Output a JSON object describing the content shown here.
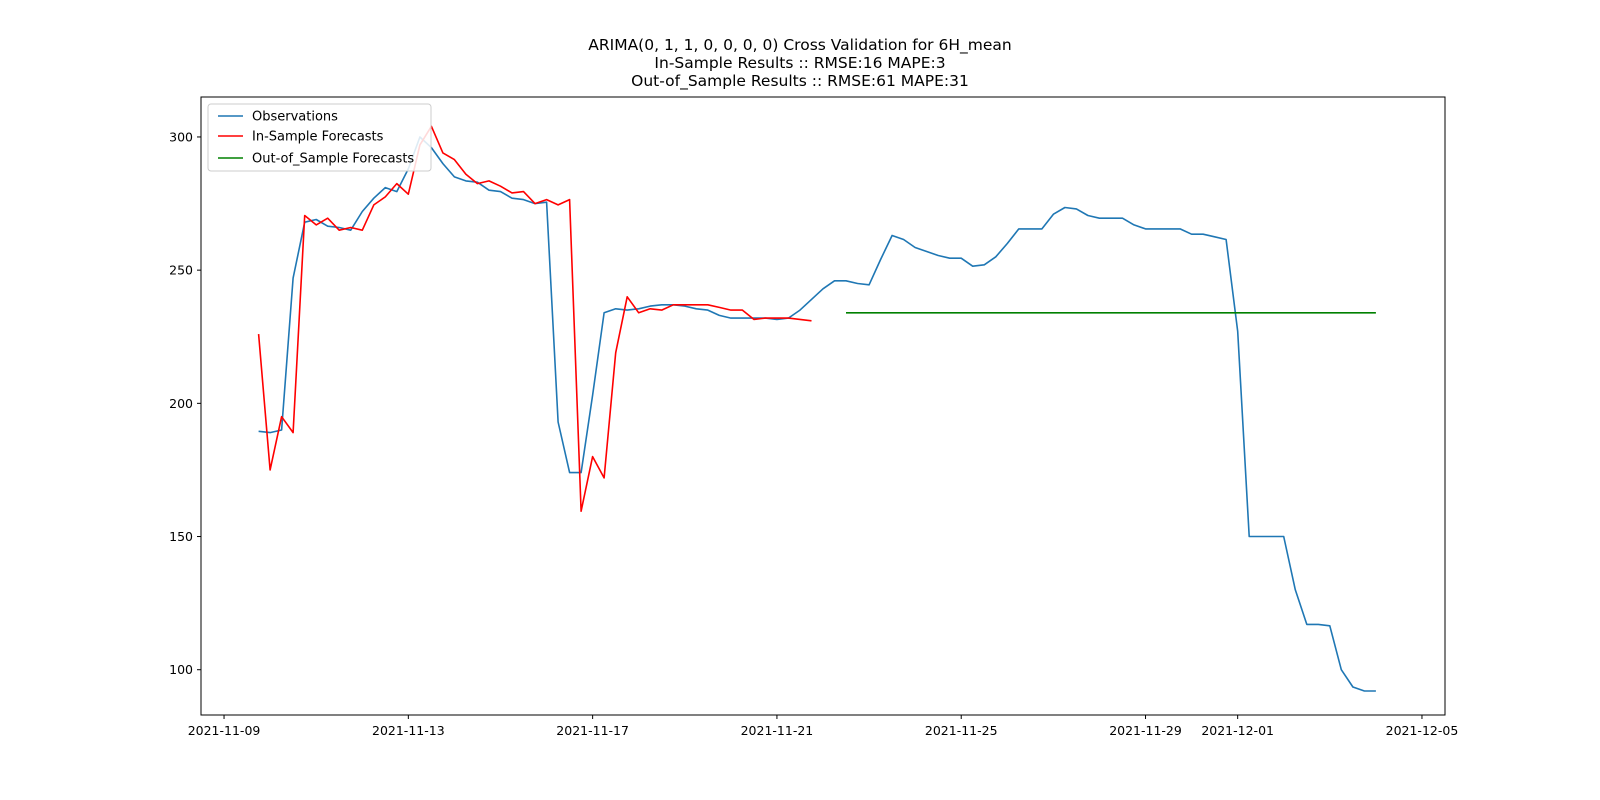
{
  "chart_data": {
    "type": "line",
    "title_lines": [
      "ARIMA(0, 1, 1, 0, 0, 0, 0) Cross Validation for 6H_mean",
      "In-Sample Results :: RMSE:16 MAPE:3",
      "Out-of_Sample Results :: RMSE:61 MAPE:31"
    ],
    "xlabel": "",
    "ylabel": "",
    "x_range": [
      "2021-11-08T12:00",
      "2021-12-05T12:00"
    ],
    "ylim": [
      83,
      315
    ],
    "x_ticks": [
      "2021-11-09",
      "2021-11-13",
      "2021-11-17",
      "2021-11-21",
      "2021-11-25",
      "2021-11-29",
      "2021-12-01",
      "2021-12-05"
    ],
    "y_ticks": [
      100,
      150,
      200,
      250,
      300
    ],
    "grid": false,
    "legend_placement": "upper-left",
    "series": [
      {
        "name": "Observations",
        "color": "#1f77b4",
        "points": [
          [
            "2021-11-09T18:00",
            189.5
          ],
          [
            "2021-11-10T00:00",
            189
          ],
          [
            "2021-11-10T06:00",
            190
          ],
          [
            "2021-11-10T12:00",
            247
          ],
          [
            "2021-11-10T18:00",
            268
          ],
          [
            "2021-11-11T00:00",
            269
          ],
          [
            "2021-11-11T06:00",
            266.5
          ],
          [
            "2021-11-11T12:00",
            266
          ],
          [
            "2021-11-11T18:00",
            265
          ],
          [
            "2021-11-12T00:00",
            272
          ],
          [
            "2021-11-12T06:00",
            277
          ],
          [
            "2021-11-12T12:00",
            281
          ],
          [
            "2021-11-12T18:00",
            279.5
          ],
          [
            "2021-11-13T00:00",
            288
          ],
          [
            "2021-11-13T06:00",
            300
          ],
          [
            "2021-11-13T12:00",
            296
          ],
          [
            "2021-11-13T18:00",
            290
          ],
          [
            "2021-11-14T00:00",
            285
          ],
          [
            "2021-11-14T06:00",
            283.5
          ],
          [
            "2021-11-14T12:00",
            283
          ],
          [
            "2021-11-14T18:00",
            280
          ],
          [
            "2021-11-15T00:00",
            279.5
          ],
          [
            "2021-11-15T06:00",
            277
          ],
          [
            "2021-11-15T12:00",
            276.5
          ],
          [
            "2021-11-15T18:00",
            275
          ],
          [
            "2021-11-16T00:00",
            275.5
          ],
          [
            "2021-11-16T06:00",
            193
          ],
          [
            "2021-11-16T12:00",
            174
          ],
          [
            "2021-11-16T18:00",
            174
          ],
          [
            "2021-11-17T00:00",
            203
          ],
          [
            "2021-11-17T06:00",
            234
          ],
          [
            "2021-11-17T12:00",
            235.5
          ],
          [
            "2021-11-17T18:00",
            235
          ],
          [
            "2021-11-18T00:00",
            235.5
          ],
          [
            "2021-11-18T06:00",
            236.5
          ],
          [
            "2021-11-18T12:00",
            237
          ],
          [
            "2021-11-18T18:00",
            237
          ],
          [
            "2021-11-19T00:00",
            236.5
          ],
          [
            "2021-11-19T06:00",
            235.5
          ],
          [
            "2021-11-19T12:00",
            235
          ],
          [
            "2021-11-19T18:00",
            233
          ],
          [
            "2021-11-20T00:00",
            232
          ],
          [
            "2021-11-20T06:00",
            232
          ],
          [
            "2021-11-20T12:00",
            232
          ],
          [
            "2021-11-20T18:00",
            232
          ],
          [
            "2021-11-21T00:00",
            231.5
          ],
          [
            "2021-11-21T06:00",
            232
          ],
          [
            "2021-11-21T12:00",
            235
          ],
          [
            "2021-11-21T18:00",
            239
          ],
          [
            "2021-11-22T00:00",
            243
          ],
          [
            "2021-11-22T06:00",
            246
          ],
          [
            "2021-11-22T12:00",
            246
          ],
          [
            "2021-11-22T18:00",
            245
          ],
          [
            "2021-11-23T00:00",
            244.5
          ],
          [
            "2021-11-23T06:00",
            254
          ],
          [
            "2021-11-23T12:00",
            263
          ],
          [
            "2021-11-23T18:00",
            261.5
          ],
          [
            "2021-11-24T00:00",
            258.5
          ],
          [
            "2021-11-24T06:00",
            257
          ],
          [
            "2021-11-24T12:00",
            255.5
          ],
          [
            "2021-11-24T18:00",
            254.5
          ],
          [
            "2021-11-25T00:00",
            254.5
          ],
          [
            "2021-11-25T06:00",
            251.5
          ],
          [
            "2021-11-25T12:00",
            252
          ],
          [
            "2021-11-25T18:00",
            255
          ],
          [
            "2021-11-26T00:00",
            260
          ],
          [
            "2021-11-26T06:00",
            265.5
          ],
          [
            "2021-11-26T12:00",
            265.5
          ],
          [
            "2021-11-26T18:00",
            265.5
          ],
          [
            "2021-11-27T00:00",
            271
          ],
          [
            "2021-11-27T06:00",
            273.5
          ],
          [
            "2021-11-27T12:00",
            273
          ],
          [
            "2021-11-27T18:00",
            270.5
          ],
          [
            "2021-11-28T00:00",
            269.5
          ],
          [
            "2021-11-28T06:00",
            269.5
          ],
          [
            "2021-11-28T12:00",
            269.5
          ],
          [
            "2021-11-28T18:00",
            267
          ],
          [
            "2021-11-29T00:00",
            265.5
          ],
          [
            "2021-11-29T06:00",
            265.5
          ],
          [
            "2021-11-29T12:00",
            265.5
          ],
          [
            "2021-11-29T18:00",
            265.5
          ],
          [
            "2021-11-30T00:00",
            263.5
          ],
          [
            "2021-11-30T06:00",
            263.5
          ],
          [
            "2021-11-30T12:00",
            262.5
          ],
          [
            "2021-11-30T18:00",
            261.5
          ],
          [
            "2021-12-01T00:00",
            227
          ],
          [
            "2021-12-01T06:00",
            150
          ],
          [
            "2021-12-01T12:00",
            150
          ],
          [
            "2021-12-01T18:00",
            150
          ],
          [
            "2021-12-02T00:00",
            150
          ],
          [
            "2021-12-02T06:00",
            130
          ],
          [
            "2021-12-02T12:00",
            117
          ],
          [
            "2021-12-02T18:00",
            117
          ],
          [
            "2021-12-03T00:00",
            116.5
          ],
          [
            "2021-12-03T06:00",
            100
          ],
          [
            "2021-12-03T12:00",
            93.5
          ],
          [
            "2021-12-03T18:00",
            92
          ],
          [
            "2021-12-04T00:00",
            92
          ]
        ]
      },
      {
        "name": "In-Sample Forecasts",
        "color": "#ff0000",
        "points": [
          [
            "2021-11-09T18:00",
            226
          ],
          [
            "2021-11-10T00:00",
            175
          ],
          [
            "2021-11-10T06:00",
            195
          ],
          [
            "2021-11-10T12:00",
            189
          ],
          [
            "2021-11-10T18:00",
            270.5
          ],
          [
            "2021-11-11T00:00",
            267
          ],
          [
            "2021-11-11T06:00",
            269.5
          ],
          [
            "2021-11-11T12:00",
            265
          ],
          [
            "2021-11-11T18:00",
            266
          ],
          [
            "2021-11-12T00:00",
            265
          ],
          [
            "2021-11-12T06:00",
            274.5
          ],
          [
            "2021-11-12T12:00",
            277.5
          ],
          [
            "2021-11-12T18:00",
            282.5
          ],
          [
            "2021-11-13T00:00",
            278.5
          ],
          [
            "2021-11-13T06:00",
            297
          ],
          [
            "2021-11-13T12:00",
            304
          ],
          [
            "2021-11-13T18:00",
            294
          ],
          [
            "2021-11-14T00:00",
            291.5
          ],
          [
            "2021-11-14T06:00",
            286
          ],
          [
            "2021-11-14T12:00",
            282.5
          ],
          [
            "2021-11-14T18:00",
            283.5
          ],
          [
            "2021-11-15T00:00",
            281.5
          ],
          [
            "2021-11-15T06:00",
            279
          ],
          [
            "2021-11-15T12:00",
            279.5
          ],
          [
            "2021-11-15T18:00",
            275
          ],
          [
            "2021-11-16T00:00",
            276.5
          ],
          [
            "2021-11-16T06:00",
            274.5
          ],
          [
            "2021-11-16T12:00",
            276.5
          ],
          [
            "2021-11-16T18:00",
            159.5
          ],
          [
            "2021-11-17T00:00",
            180
          ],
          [
            "2021-11-17T06:00",
            172
          ],
          [
            "2021-11-17T12:00",
            219
          ],
          [
            "2021-11-17T18:00",
            240
          ],
          [
            "2021-11-18T00:00",
            234
          ],
          [
            "2021-11-18T06:00",
            235.5
          ],
          [
            "2021-11-18T12:00",
            235
          ],
          [
            "2021-11-18T18:00",
            237
          ],
          [
            "2021-11-19T00:00",
            237
          ],
          [
            "2021-11-19T06:00",
            237
          ],
          [
            "2021-11-19T12:00",
            237
          ],
          [
            "2021-11-19T18:00",
            236
          ],
          [
            "2021-11-20T00:00",
            235
          ],
          [
            "2021-11-20T06:00",
            235
          ],
          [
            "2021-11-20T12:00",
            231.5
          ],
          [
            "2021-11-20T18:00",
            232
          ],
          [
            "2021-11-21T00:00",
            232
          ],
          [
            "2021-11-21T06:00",
            232
          ],
          [
            "2021-11-21T12:00",
            231.5
          ],
          [
            "2021-11-21T18:00",
            231
          ]
        ]
      },
      {
        "name": "Out-of_Sample Forecasts",
        "color": "#008000",
        "points": [
          [
            "2021-11-22T12:00",
            234
          ],
          [
            "2021-12-04T00:00",
            234
          ]
        ]
      }
    ]
  }
}
